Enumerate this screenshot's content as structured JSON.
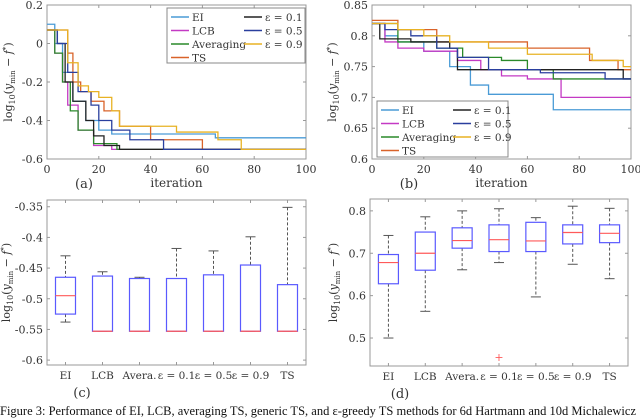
{
  "caption": "Figure 3: Performance of EI, LCB, averaging TS, generic TS, and ε-greedy TS methods for 6d Hartmann and 10d Michalewicz",
  "colors": {
    "EI": "#4a9bd6",
    "LCB": "#c43ac4",
    "Averaging": "#2a8a2a",
    "TS": "#d9632a",
    "eps01": "#222222",
    "eps05": "#2a3f9e",
    "eps09": "#e8b224",
    "box": "#5a5aff",
    "median": "#ff5a5a"
  },
  "chart_data": [
    {
      "type": "line",
      "panel_label": "(a)",
      "xlabel": "iteration",
      "ylabel": "log10(y_min − f*)",
      "xlim": [
        0,
        100
      ],
      "ylim": [
        -0.6,
        0.2
      ],
      "xticks": [
        "0",
        "20",
        "40",
        "60",
        "80",
        "100"
      ],
      "xtick_values": [
        0,
        20,
        40,
        60,
        80,
        100
      ],
      "yticks": [
        "0.2",
        "0",
        "-0.2",
        "-0.4",
        "-0.6"
      ],
      "ytick_values": [
        0.2,
        0,
        -0.2,
        -0.4,
        -0.6
      ],
      "grid": false,
      "legend": "top-right",
      "step": true,
      "series": [
        {
          "name": "EI",
          "key": "EI",
          "x": [
            0,
            3,
            6,
            10,
            15,
            20,
            25,
            65,
            100
          ],
          "y": [
            0.1,
            0.0,
            -0.15,
            -0.3,
            -0.4,
            -0.45,
            -0.47,
            -0.49,
            -0.49
          ]
        },
        {
          "name": "LCB",
          "key": "LCB",
          "x": [
            0,
            3,
            6,
            8,
            12,
            18,
            25,
            100
          ],
          "y": [
            0.07,
            -0.05,
            -0.2,
            -0.32,
            -0.45,
            -0.53,
            -0.55,
            -0.55
          ]
        },
        {
          "name": "Averaging",
          "key": "Averaging",
          "x": [
            0,
            3,
            6,
            9,
            12,
            18,
            27,
            100
          ],
          "y": [
            0.07,
            -0.05,
            -0.2,
            -0.35,
            -0.45,
            -0.52,
            -0.55,
            -0.55
          ]
        },
        {
          "name": "TS",
          "key": "TS",
          "x": [
            0,
            4,
            8,
            10,
            13,
            17,
            22,
            28,
            32,
            40,
            60,
            100
          ],
          "y": [
            0.07,
            0.07,
            -0.05,
            -0.2,
            -0.25,
            -0.3,
            -0.35,
            -0.43,
            -0.43,
            -0.5,
            -0.55,
            -0.55
          ]
        },
        {
          "name": "ε = 0.1",
          "key": "eps01",
          "x": [
            0,
            4,
            7,
            10,
            15,
            18,
            22,
            28,
            100
          ],
          "y": [
            0.07,
            0.0,
            -0.2,
            -0.3,
            -0.4,
            -0.48,
            -0.53,
            -0.55,
            -0.55
          ]
        },
        {
          "name": "ε = 0.5",
          "key": "eps05",
          "x": [
            0,
            4,
            8,
            12,
            17,
            20,
            25,
            32,
            45,
            100
          ],
          "y": [
            0.07,
            0.0,
            -0.15,
            -0.25,
            -0.32,
            -0.4,
            -0.45,
            -0.5,
            -0.55,
            -0.55
          ]
        },
        {
          "name": "ε = 0.9",
          "key": "eps09",
          "x": [
            0,
            5,
            8,
            12,
            16,
            20,
            25,
            28,
            48,
            50,
            66,
            72,
            75,
            100
          ],
          "y": [
            0.07,
            0.07,
            -0.1,
            -0.22,
            -0.25,
            -0.28,
            -0.35,
            -0.43,
            -0.43,
            -0.46,
            -0.5,
            -0.5,
            -0.55,
            -0.55
          ]
        }
      ]
    },
    {
      "type": "line",
      "panel_label": "(b)",
      "xlabel": "iteration",
      "ylabel": "log10(y_min − f*)",
      "xlim": [
        0,
        100
      ],
      "ylim": [
        0.6,
        0.85
      ],
      "xticks": [
        "0",
        "20",
        "40",
        "60",
        "80",
        "100"
      ],
      "xtick_values": [
        0,
        20,
        40,
        60,
        80,
        100
      ],
      "yticks": [
        "0.85",
        "0.8",
        "0.75",
        "0.7",
        "0.65",
        "0.6"
      ],
      "ytick_values": [
        0.85,
        0.8,
        0.75,
        0.7,
        0.65,
        0.6
      ],
      "grid": false,
      "legend": "bottom-left",
      "step": true,
      "series": [
        {
          "name": "EI",
          "key": "EI",
          "x": [
            0,
            5,
            10,
            20,
            30,
            38,
            45,
            70,
            100
          ],
          "y": [
            0.82,
            0.8,
            0.79,
            0.775,
            0.75,
            0.72,
            0.705,
            0.68,
            0.68
          ]
        },
        {
          "name": "LCB",
          "key": "LCB",
          "x": [
            0,
            5,
            10,
            20,
            33,
            42,
            50,
            60,
            73,
            100
          ],
          "y": [
            0.82,
            0.79,
            0.78,
            0.775,
            0.76,
            0.745,
            0.735,
            0.73,
            0.7,
            0.7
          ]
        },
        {
          "name": "Averaging",
          "key": "Averaging",
          "x": [
            0,
            10,
            25,
            35,
            50,
            60,
            70,
            100
          ],
          "y": [
            0.82,
            0.79,
            0.78,
            0.765,
            0.76,
            0.745,
            0.73,
            0.73
          ]
        },
        {
          "name": "TS",
          "key": "TS",
          "x": [
            0,
            10,
            25,
            60,
            84,
            95,
            100
          ],
          "y": [
            0.825,
            0.81,
            0.79,
            0.78,
            0.76,
            0.745,
            0.745
          ]
        },
        {
          "name": "ε = 0.1",
          "key": "eps01",
          "x": [
            0,
            3,
            15,
            30,
            33,
            97,
            100
          ],
          "y": [
            0.82,
            0.795,
            0.79,
            0.78,
            0.745,
            0.73,
            0.73
          ]
        },
        {
          "name": "ε = 0.5",
          "key": "eps05",
          "x": [
            0,
            5,
            15,
            25,
            33,
            45,
            65,
            90,
            100
          ],
          "y": [
            0.82,
            0.81,
            0.8,
            0.78,
            0.765,
            0.745,
            0.74,
            0.73,
            0.73
          ]
        },
        {
          "name": "ε = 0.9",
          "key": "eps09",
          "x": [
            0,
            10,
            20,
            30,
            45,
            60,
            85,
            97,
            100
          ],
          "y": [
            0.82,
            0.81,
            0.8,
            0.79,
            0.78,
            0.77,
            0.76,
            0.75,
            0.75
          ]
        }
      ]
    },
    {
      "type": "box",
      "panel_label": "(c)",
      "ylabel": "log10(y_min − f*)",
      "ylim": [
        -0.608,
        -0.339
      ],
      "yticks": [
        "-0.35",
        "-0.4",
        "-0.45",
        "-0.5",
        "-0.55",
        "-0.6"
      ],
      "ytick_values": [
        -0.35,
        -0.4,
        -0.45,
        -0.5,
        -0.55,
        -0.6
      ],
      "categories": [
        "EI",
        "LCB",
        "Avera.",
        "ε = 0.1",
        "ε = 0.5",
        "ε = 0.9",
        "TS"
      ],
      "boxes": [
        {
          "low": -0.538,
          "q1": -0.525,
          "median": -0.495,
          "q3": -0.465,
          "high": -0.43
        },
        {
          "low": -0.553,
          "q1": -0.553,
          "median": -0.553,
          "q3": -0.463,
          "high": -0.456
        },
        {
          "low": -0.553,
          "q1": -0.553,
          "median": -0.553,
          "q3": -0.467,
          "high": -0.465
        },
        {
          "low": -0.553,
          "q1": -0.553,
          "median": -0.553,
          "q3": -0.467,
          "high": -0.418
        },
        {
          "low": -0.553,
          "q1": -0.553,
          "median": -0.553,
          "q3": -0.461,
          "high": -0.422
        },
        {
          "low": -0.553,
          "q1": -0.553,
          "median": -0.553,
          "q3": -0.445,
          "high": -0.399
        },
        {
          "low": -0.553,
          "q1": -0.553,
          "median": -0.553,
          "q3": -0.477,
          "high": -0.351
        }
      ],
      "outliers": []
    },
    {
      "type": "box",
      "panel_label": "(d)",
      "ylabel": "log10(y_min − f*)",
      "ylim": [
        0.434,
        0.828
      ],
      "yticks": [
        "0.8",
        "0.7",
        "0.6",
        "0.5"
      ],
      "ytick_values": [
        0.8,
        0.7,
        0.6,
        0.5
      ],
      "categories": [
        "EI",
        "LCB",
        "Avera.",
        "ε = 0.1",
        "ε = 0.5",
        "ε = 0.9",
        "TS"
      ],
      "boxes": [
        {
          "low": 0.5,
          "q1": 0.628,
          "median": 0.678,
          "q3": 0.697,
          "high": 0.742
        },
        {
          "low": 0.563,
          "q1": 0.66,
          "median": 0.7,
          "q3": 0.75,
          "high": 0.786
        },
        {
          "low": 0.661,
          "q1": 0.712,
          "median": 0.73,
          "q3": 0.76,
          "high": 0.8
        },
        {
          "low": 0.678,
          "q1": 0.704,
          "median": 0.732,
          "q3": 0.767,
          "high": 0.805
        },
        {
          "low": 0.597,
          "q1": 0.704,
          "median": 0.729,
          "q3": 0.773,
          "high": 0.784
        },
        {
          "low": 0.674,
          "q1": 0.722,
          "median": 0.749,
          "q3": 0.767,
          "high": 0.811
        },
        {
          "low": 0.64,
          "q1": 0.725,
          "median": 0.747,
          "q3": 0.767,
          "high": 0.806
        }
      ],
      "outliers": [
        {
          "category": "ε = 0.1",
          "value": 0.455
        }
      ]
    }
  ]
}
